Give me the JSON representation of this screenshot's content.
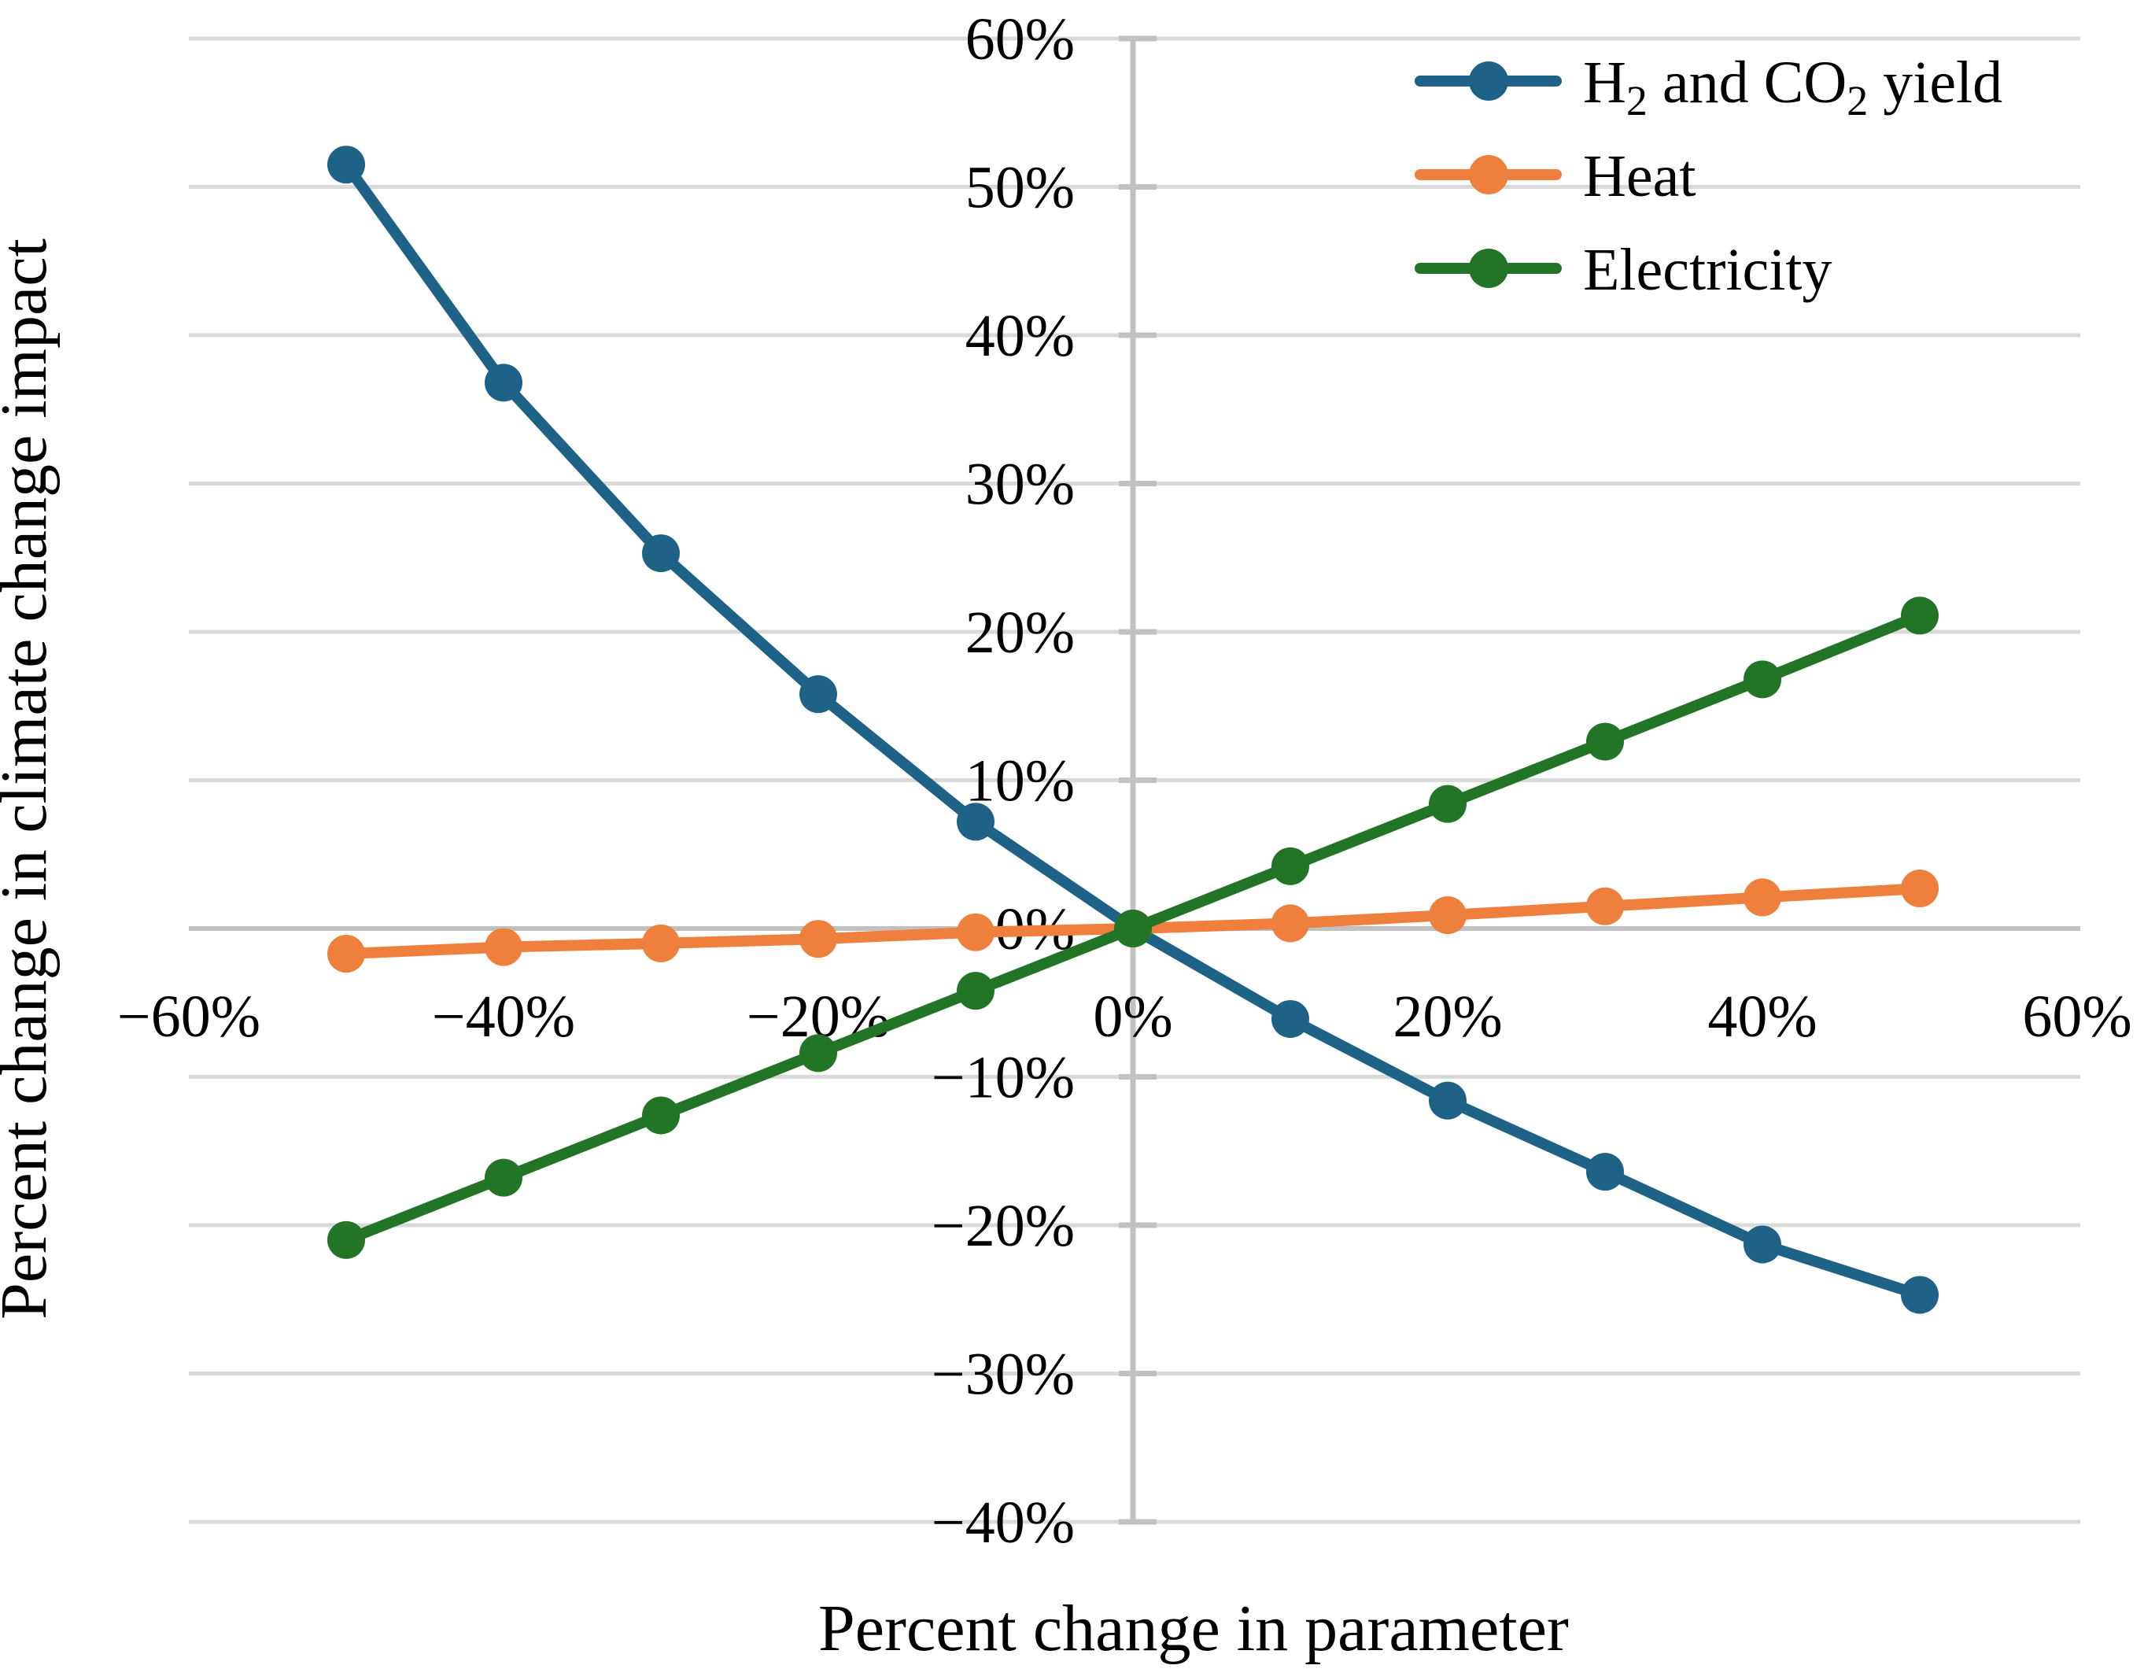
{
  "chart_data": {
    "type": "line",
    "title": "",
    "xlabel": "Percent change in parameter",
    "ylabel": "Percent change in climate change impact",
    "xlim": [
      -60,
      60
    ],
    "ylim": [
      -40,
      60
    ],
    "grid": "horizontal",
    "legend_position": "top-right",
    "x": [
      -50,
      -40,
      -30,
      -20,
      -10,
      0,
      10,
      20,
      30,
      40,
      50
    ],
    "series": [
      {
        "id": "h2-co2-yield",
        "name": "H2 and CO2 yield",
        "name_rich": [
          {
            "text": "H",
            "sub": false
          },
          {
            "text": "2",
            "sub": true
          },
          {
            "text": " and CO",
            "sub": false
          },
          {
            "text": "2",
            "sub": true
          },
          {
            "text": " yield",
            "sub": false
          }
        ],
        "color": "#1F6287",
        "values": [
          51.5,
          36.8,
          25.3,
          15.8,
          7.2,
          0,
          -6.1,
          -11.6,
          -16.4,
          -21.3,
          -24.7
        ]
      },
      {
        "id": "heat",
        "name": "Heat",
        "name_rich": [
          {
            "text": "Heat",
            "sub": false
          }
        ],
        "color": "#EF7F3C",
        "values": [
          -1.7,
          -1.25,
          -1.0,
          -0.7,
          -0.25,
          0,
          0.35,
          0.9,
          1.5,
          2.1,
          2.7
        ]
      },
      {
        "id": "electricity",
        "name": "Electricity",
        "name_rich": [
          {
            "text": "Electricity",
            "sub": false
          }
        ],
        "color": "#227426",
        "values": [
          -21.0,
          -16.8,
          -12.6,
          -8.4,
          -4.2,
          0,
          4.2,
          8.4,
          12.6,
          16.8,
          21.1
        ]
      }
    ],
    "x_ticks": [
      {
        "v": -60,
        "label": "−60%"
      },
      {
        "v": -40,
        "label": "−40%"
      },
      {
        "v": -20,
        "label": "−20%"
      },
      {
        "v": 0,
        "label": "0%"
      },
      {
        "v": 20,
        "label": "20%"
      },
      {
        "v": 40,
        "label": "40%"
      },
      {
        "v": 60,
        "label": "60%"
      }
    ],
    "y_ticks": [
      {
        "v": 60,
        "label": "60%"
      },
      {
        "v": 50,
        "label": "50%"
      },
      {
        "v": 40,
        "label": "40%"
      },
      {
        "v": 30,
        "label": "30%"
      },
      {
        "v": 20,
        "label": "20%"
      },
      {
        "v": 10,
        "label": "10%"
      },
      {
        "v": 0,
        "label": "0%"
      },
      {
        "v": -10,
        "label": "−10%"
      },
      {
        "v": -20,
        "label": "−20%"
      },
      {
        "v": -30,
        "label": "−30%"
      },
      {
        "v": -40,
        "label": "−40%"
      }
    ],
    "colors": {
      "gridline": "#D9D9D9",
      "axis_line": "#C1C1C1",
      "tick_mark": "#C1C1C1",
      "text": "#000000",
      "background": "#FFFFFF"
    }
  }
}
